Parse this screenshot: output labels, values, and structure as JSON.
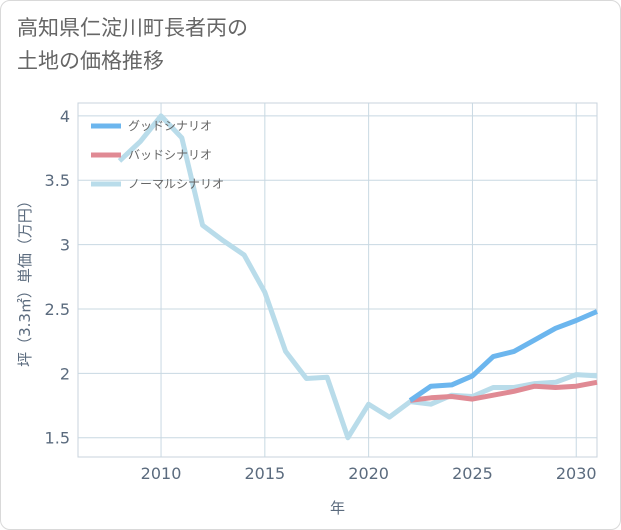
{
  "chart_data": {
    "type": "line",
    "title": "高知県仁淀川町長者丙の\n土地の価格推移",
    "xlabel": "年",
    "ylabel": "坪（3.3㎡）単価（万円）",
    "xlim": [
      2006,
      2031
    ],
    "ylim": [
      1.35,
      4.1
    ],
    "xticks": [
      2010,
      2015,
      2020,
      2025,
      2030
    ],
    "yticks": [
      1.5,
      2,
      2.5,
      3,
      3.5,
      4
    ],
    "xtick_labels": [
      "2010",
      "2015",
      "2020",
      "2025",
      "2030"
    ],
    "ytick_labels": [
      "1.5",
      "2",
      "2.5",
      "3",
      "3.5",
      "4"
    ],
    "grid": true,
    "legend_position": "top-left",
    "series": [
      {
        "name": "グッドシナリオ",
        "color": "#6cb6ee",
        "x": [
          2022,
          2023,
          2024,
          2025,
          2026,
          2027,
          2028,
          2029,
          2030,
          2031
        ],
        "y": [
          1.79,
          1.9,
          1.91,
          1.98,
          2.13,
          2.17,
          2.26,
          2.35,
          2.41,
          2.48
        ]
      },
      {
        "name": "バッドシナリオ",
        "color": "#e08a94",
        "x": [
          2022,
          2023,
          2024,
          2025,
          2026,
          2027,
          2028,
          2029,
          2030,
          2031
        ],
        "y": [
          1.79,
          1.81,
          1.82,
          1.8,
          1.83,
          1.86,
          1.9,
          1.89,
          1.9,
          1.93
        ]
      },
      {
        "name": "ノーマルシナリオ",
        "color": "#b9dcea",
        "x": [
          2008,
          2009,
          2010,
          2011,
          2012,
          2013,
          2014,
          2015,
          2016,
          2017,
          2018,
          2019,
          2020,
          2021,
          2022,
          2023,
          2024,
          2025,
          2026,
          2027,
          2028,
          2029,
          2030,
          2031
        ],
        "y": [
          3.65,
          3.8,
          4.0,
          3.83,
          3.15,
          3.03,
          2.92,
          2.63,
          2.17,
          1.96,
          1.97,
          1.5,
          1.76,
          1.66,
          1.78,
          1.76,
          1.83,
          1.82,
          1.89,
          1.89,
          1.92,
          1.93,
          1.99,
          1.98
        ]
      }
    ]
  }
}
